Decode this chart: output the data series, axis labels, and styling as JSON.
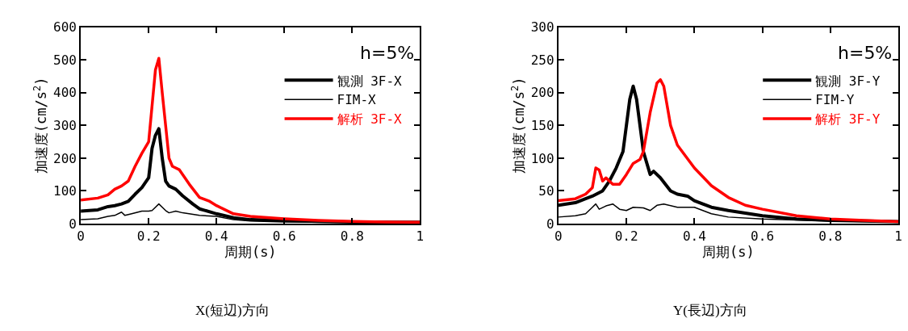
{
  "chart_data": [
    {
      "type": "line",
      "xlabel": "周期(s)",
      "ylabel": "加速度(cm/s$^{2}$)",
      "xlim": [
        0,
        1
      ],
      "ylim": [
        0,
        600
      ],
      "xticks": [
        0,
        0.2,
        0.4,
        0.6,
        0.8,
        1
      ],
      "yticks": [
        0,
        100,
        200,
        300,
        400,
        500,
        600
      ],
      "legend": "top right",
      "marker": "none",
      "line_style": "solid",
      "annotations": [
        "h=5%",
        "X(短辺)方向"
      ],
      "series": [
        {
          "name": "観測 3F-X",
          "color": "#000000",
          "x": [
            0,
            0.05,
            0.08,
            0.1,
            0.12,
            0.14,
            0.16,
            0.18,
            0.2,
            0.21,
            0.22,
            0.23,
            0.24,
            0.25,
            0.26,
            0.28,
            0.3,
            0.33,
            0.35,
            0.4,
            0.45,
            0.5,
            0.6,
            0.7,
            0.8,
            1
          ],
          "values": [
            38,
            42,
            52,
            55,
            60,
            68,
            90,
            110,
            140,
            230,
            270,
            290,
            200,
            130,
            115,
            105,
            85,
            60,
            45,
            30,
            18,
            12,
            10,
            7,
            5,
            4
          ]
        },
        {
          "name": "FIM-X",
          "color": "#000000",
          "x": [
            0,
            0.05,
            0.08,
            0.1,
            0.12,
            0.13,
            0.15,
            0.18,
            0.2,
            0.21,
            0.23,
            0.25,
            0.26,
            0.28,
            0.3,
            0.35,
            0.4,
            0.45,
            0.5,
            0.6,
            1
          ],
          "values": [
            12,
            15,
            22,
            25,
            35,
            25,
            30,
            38,
            38,
            40,
            60,
            40,
            33,
            38,
            33,
            25,
            22,
            12,
            8,
            5,
            3
          ]
        },
        {
          "name": "解析 3F-X",
          "color": "#ff0000",
          "x": [
            0,
            0.05,
            0.08,
            0.1,
            0.12,
            0.14,
            0.16,
            0.18,
            0.2,
            0.21,
            0.22,
            0.23,
            0.24,
            0.25,
            0.26,
            0.27,
            0.29,
            0.32,
            0.35,
            0.38,
            0.4,
            0.45,
            0.5,
            0.6,
            0.7,
            0.8,
            0.9,
            1
          ],
          "values": [
            72,
            78,
            88,
            105,
            115,
            130,
            175,
            215,
            250,
            360,
            470,
            505,
            400,
            300,
            200,
            175,
            165,
            120,
            80,
            68,
            55,
            30,
            22,
            15,
            10,
            7,
            5,
            4
          ]
        }
      ]
    },
    {
      "type": "line",
      "xlabel": "周期(s)",
      "ylabel": "加速度(cm/s$^{2}$)",
      "xlim": [
        0,
        1
      ],
      "ylim": [
        0,
        300
      ],
      "xticks": [
        0,
        0.2,
        0.4,
        0.6,
        0.8,
        1
      ],
      "yticks": [
        0,
        50,
        100,
        150,
        200,
        250,
        300
      ],
      "legend": "top right",
      "marker": "none",
      "line_style": "solid",
      "annotations": [
        "h=5%",
        "Y(長辺)方向"
      ],
      "series": [
        {
          "name": "観測 3F-Y",
          "color": "#000000",
          "x": [
            0,
            0.05,
            0.08,
            0.1,
            0.13,
            0.15,
            0.17,
            0.19,
            0.2,
            0.21,
            0.22,
            0.23,
            0.25,
            0.27,
            0.28,
            0.3,
            0.33,
            0.35,
            0.38,
            0.4,
            0.45,
            0.5,
            0.6,
            0.7,
            0.8,
            1
          ],
          "values": [
            28,
            32,
            38,
            42,
            50,
            65,
            85,
            110,
            150,
            190,
            210,
            190,
            110,
            75,
            80,
            70,
            50,
            45,
            42,
            35,
            25,
            20,
            12,
            7,
            5,
            3
          ]
        },
        {
          "name": "FIM-Y",
          "color": "#000000",
          "x": [
            0,
            0.05,
            0.08,
            0.1,
            0.11,
            0.12,
            0.14,
            0.16,
            0.18,
            0.2,
            0.22,
            0.25,
            0.27,
            0.29,
            0.31,
            0.35,
            0.4,
            0.45,
            0.5,
            0.6,
            0.8,
            1
          ],
          "values": [
            10,
            12,
            15,
            25,
            30,
            22,
            27,
            30,
            22,
            20,
            25,
            24,
            20,
            28,
            30,
            25,
            25,
            15,
            10,
            7,
            4,
            2
          ]
        },
        {
          "name": "解析 3F-Y",
          "color": "#ff0000",
          "x": [
            0,
            0.05,
            0.08,
            0.1,
            0.11,
            0.12,
            0.13,
            0.14,
            0.16,
            0.18,
            0.2,
            0.22,
            0.24,
            0.25,
            0.27,
            0.29,
            0.3,
            0.31,
            0.33,
            0.35,
            0.4,
            0.45,
            0.5,
            0.55,
            0.6,
            0.7,
            0.8,
            0.9,
            1
          ],
          "values": [
            35,
            38,
            45,
            55,
            85,
            82,
            65,
            70,
            60,
            60,
            75,
            92,
            98,
            110,
            170,
            215,
            220,
            210,
            150,
            120,
            85,
            58,
            40,
            28,
            22,
            12,
            7,
            5,
            3
          ]
        }
      ]
    }
  ]
}
